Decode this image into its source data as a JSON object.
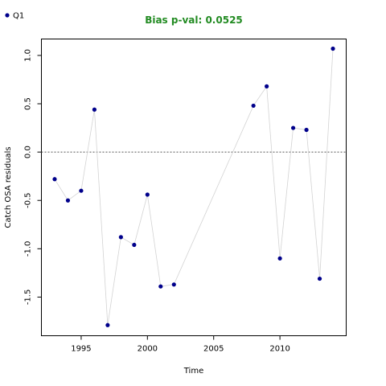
{
  "chart_data": {
    "type": "scatter",
    "title": "Bias p-val: 0.0525",
    "title_color": "#228B22",
    "xlabel": "Time",
    "ylabel": "Catch OSA residuals",
    "xlim": [
      1992,
      2015
    ],
    "ylim": [
      -1.9,
      1.17
    ],
    "xticks": [
      1995,
      2000,
      2005,
      2010
    ],
    "yticks": [
      -1.5,
      -1.0,
      -0.5,
      0.0,
      0.5,
      1.0
    ],
    "xtick_labels": [
      "1995",
      "2000",
      "2005",
      "2010"
    ],
    "ytick_labels": [
      "-1.5",
      "-1.0",
      "-0.5",
      "0.0",
      "0.5",
      "1.0"
    ],
    "reference_line_y": 0,
    "grid": false,
    "legend_position": "top-left",
    "point_color": "#00008B",
    "line_color": "#d3d3d3",
    "series": [
      {
        "name": "Q1",
        "x": [
          1993,
          1994,
          1995,
          1996,
          1997,
          1998,
          1999,
          2000,
          2001,
          2002,
          2008,
          2009,
          2010,
          2011,
          2012,
          2013,
          2014
        ],
        "y": [
          -0.28,
          -0.5,
          -0.4,
          0.44,
          -1.79,
          -0.88,
          -0.96,
          -0.44,
          -1.39,
          -1.37,
          0.48,
          0.68,
          -1.1,
          0.25,
          0.23,
          -1.31,
          1.07
        ]
      }
    ]
  }
}
